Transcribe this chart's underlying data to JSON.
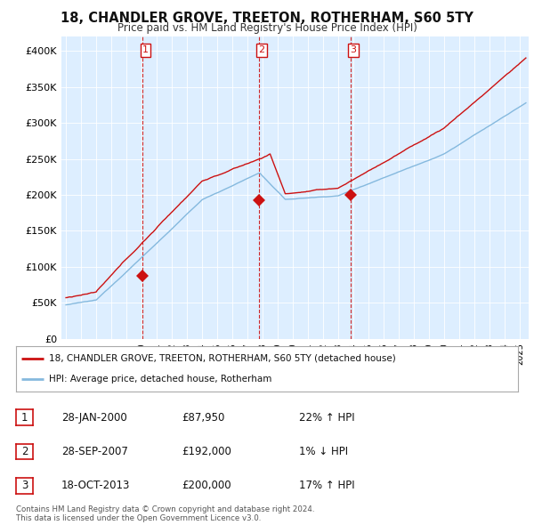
{
  "title": "18, CHANDLER GROVE, TREETON, ROTHERHAM, S60 5TY",
  "subtitle": "Price paid vs. HM Land Registry's House Price Index (HPI)",
  "ylabel_ticks": [
    "£0",
    "£50K",
    "£100K",
    "£150K",
    "£200K",
    "£250K",
    "£300K",
    "£350K",
    "£400K"
  ],
  "ytick_values": [
    0,
    50000,
    100000,
    150000,
    200000,
    250000,
    300000,
    350000,
    400000
  ],
  "ylim": [
    0,
    420000
  ],
  "xlim_start": 1994.7,
  "xlim_end": 2025.6,
  "sale_dates_num": [
    2000.07,
    2007.74,
    2013.8
  ],
  "sale_prices": [
    87950,
    192000,
    200000
  ],
  "sale_labels": [
    "1",
    "2",
    "3"
  ],
  "hpi_color": "#85b9de",
  "price_color": "#cc1111",
  "plot_bg_color": "#ddeeff",
  "vline_color": "#cc1111",
  "legend_property_label": "18, CHANDLER GROVE, TREETON, ROTHERHAM, S60 5TY (detached house)",
  "legend_hpi_label": "HPI: Average price, detached house, Rotherham",
  "table_rows": [
    {
      "num": "1",
      "date": "28-JAN-2000",
      "price": "£87,950",
      "pct": "22% ↑ HPI"
    },
    {
      "num": "2",
      "date": "28-SEP-2007",
      "price": "£192,000",
      "pct": "1% ↓ HPI"
    },
    {
      "num": "3",
      "date": "18-OCT-2013",
      "price": "£200,000",
      "pct": "17% ↑ HPI"
    }
  ],
  "footnote": "Contains HM Land Registry data © Crown copyright and database right 2024.\nThis data is licensed under the Open Government Licence v3.0.",
  "background_color": "#ffffff",
  "grid_color": "#ffffff"
}
